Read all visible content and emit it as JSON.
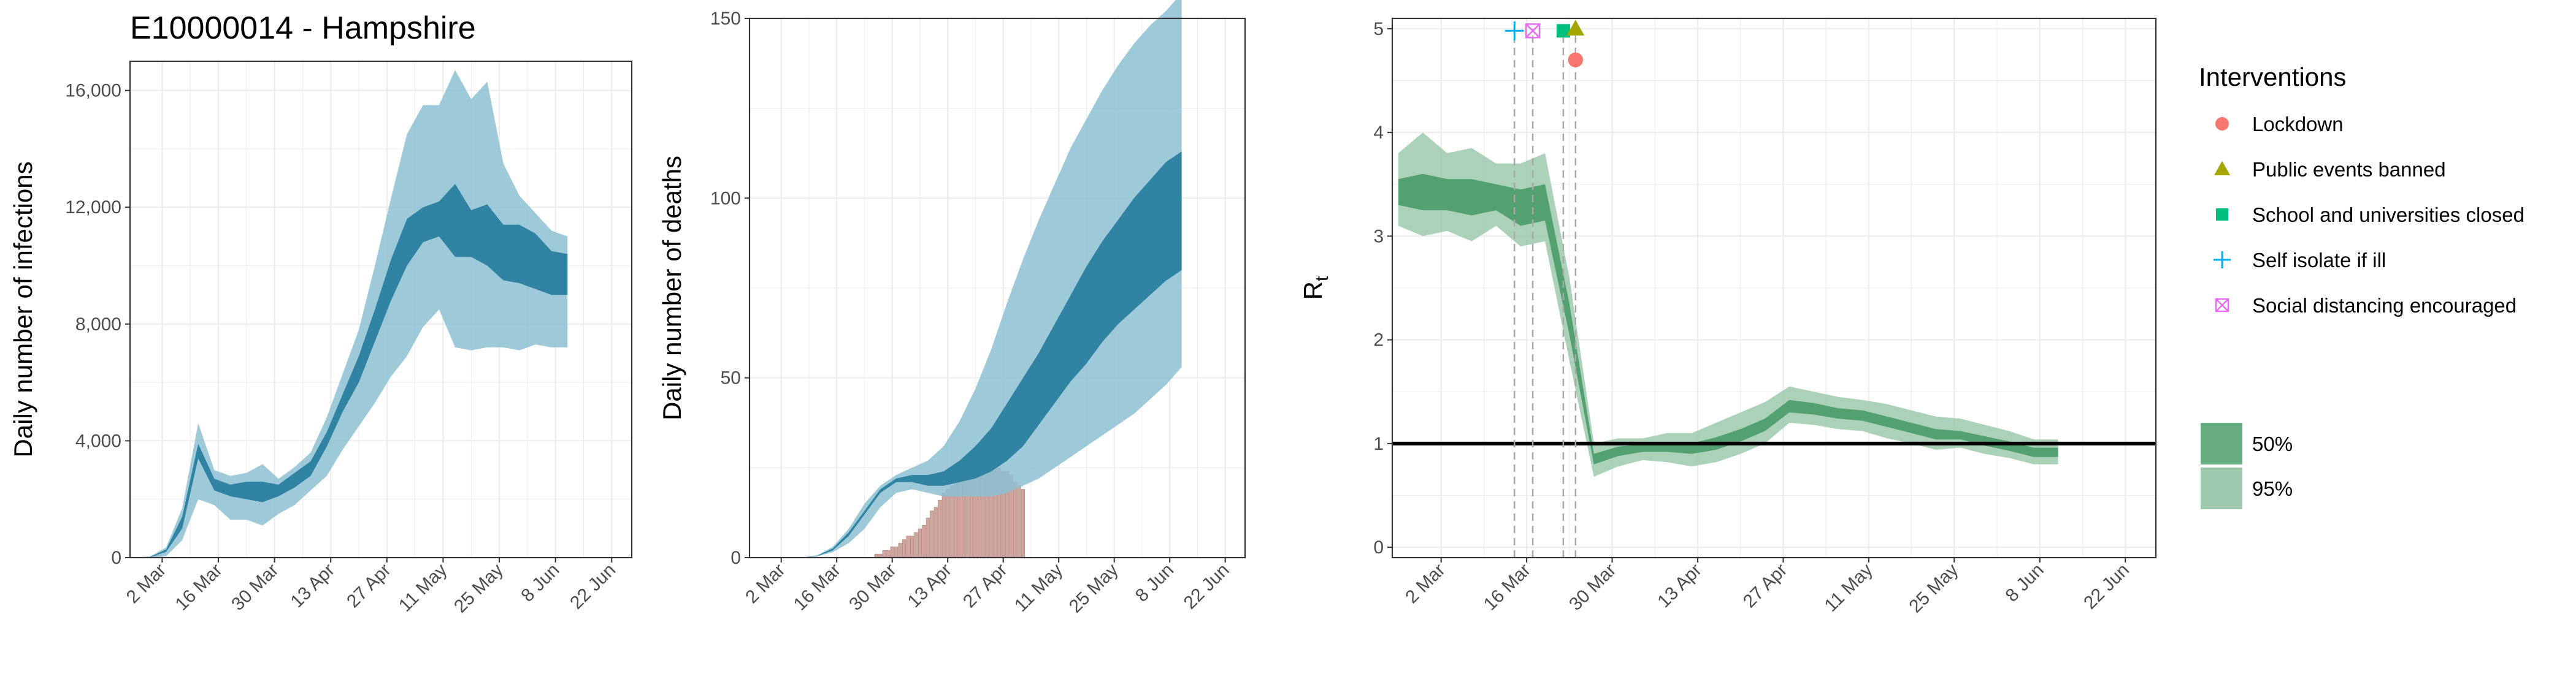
{
  "title": "E10000014 - Hampshire",
  "colors": {
    "blue_dark": "#2B7FA0",
    "blue_light": "#8CBFD2",
    "green_dark": "#4E9D6B",
    "green_light": "#9CC9AD",
    "bar": "#D0A59E",
    "grid": "#EBEBEB",
    "lockdown": "#F8766D",
    "public_events": "#A3A500",
    "schools": "#00BF7D",
    "self_isolate": "#00B0F6",
    "social_distancing": "#E76BF3"
  },
  "chart_data": [
    {
      "id": "infections",
      "type": "area",
      "title": "E10000014 - Hampshire",
      "ylabel": "Daily number of infections",
      "ylim": [
        0,
        17000
      ],
      "yticks": [
        0,
        4000,
        8000,
        12000,
        16000
      ],
      "ytick_labels": [
        "0",
        "4,000",
        "8,000",
        "12,000",
        "16,000"
      ],
      "xticks": [
        1,
        15,
        29,
        43,
        57,
        71,
        85,
        99,
        113
      ],
      "xtick_labels": [
        "2 Mar",
        "16 Mar",
        "30 Mar",
        "13 Apr",
        "27 Apr",
        "11 May",
        "25 May",
        "8 Jun",
        "22 Jun"
      ],
      "x_start": -6,
      "x_step": 4,
      "series": [
        {
          "name": "95%",
          "lower": [
            0,
            0,
            50,
            600,
            2000,
            1800,
            1300,
            1300,
            1100,
            1500,
            1800,
            2300,
            2800,
            3700,
            4500,
            5300,
            6200,
            6900,
            7900,
            8500,
            7200,
            7100,
            7200,
            7200,
            7100,
            7300,
            7200,
            7200
          ],
          "upper": [
            0,
            40,
            350,
            1700,
            4600,
            3000,
            2800,
            2900,
            3200,
            2700,
            3100,
            3600,
            4800,
            6300,
            7800,
            10000,
            12300,
            14500,
            15500,
            15500,
            16700,
            15700,
            16300,
            13500,
            12400,
            11800,
            11200,
            11000
          ]
        },
        {
          "name": "50%",
          "lower": [
            0,
            10,
            200,
            1000,
            3400,
            2300,
            2100,
            2000,
            1900,
            2100,
            2400,
            2800,
            3800,
            5000,
            6000,
            7400,
            8800,
            10000,
            10800,
            11000,
            10300,
            10300,
            10000,
            9500,
            9400,
            9200,
            9000,
            9000
          ],
          "upper": [
            0,
            20,
            280,
            1400,
            3900,
            2700,
            2500,
            2600,
            2600,
            2500,
            2900,
            3300,
            4300,
            5600,
            6900,
            8500,
            10200,
            11600,
            12000,
            12200,
            12800,
            11900,
            12100,
            11400,
            11400,
            11100,
            10500,
            10400
          ]
        }
      ]
    },
    {
      "id": "deaths",
      "type": "area",
      "ylabel": "Daily number of deaths",
      "ylim": [
        0,
        150
      ],
      "yticks": [
        0,
        50,
        100,
        150
      ],
      "ytick_labels": [
        "0",
        "50",
        "100",
        "150"
      ],
      "xticks": [
        1,
        15,
        29,
        43,
        57,
        71,
        85,
        99,
        113
      ],
      "xtick_labels": [
        "2 Mar",
        "16 Mar",
        "30 Mar",
        "13 Apr",
        "27 Apr",
        "11 May",
        "25 May",
        "8 Jun",
        "22 Jun"
      ],
      "x_start": -6,
      "x_step": 4,
      "series": [
        {
          "name": "95%",
          "lower": [
            0,
            0,
            0,
            0,
            0.3,
            1.5,
            4,
            8,
            14,
            18,
            19,
            18,
            17,
            17,
            17,
            17,
            18,
            20,
            22,
            25,
            28,
            31,
            34,
            37,
            40,
            44,
            48,
            53
          ],
          "upper": [
            0,
            0,
            0,
            0,
            0.6,
            3,
            8,
            15,
            20,
            23,
            25,
            27,
            31,
            38,
            47,
            58,
            71,
            83,
            94,
            104,
            114,
            122,
            130,
            137,
            143,
            148,
            152,
            157
          ]
        },
        {
          "name": "50%",
          "lower": [
            0,
            0,
            0,
            0,
            0.4,
            2,
            6,
            12,
            18,
            21,
            21,
            20,
            20,
            21,
            22,
            24,
            27,
            31,
            37,
            43,
            49,
            54,
            60,
            65,
            69,
            73,
            77,
            80
          ],
          "upper": [
            0,
            0,
            0,
            0,
            0.5,
            2.5,
            7,
            13,
            19,
            22,
            23,
            23,
            24,
            27,
            31,
            36,
            43,
            50,
            57,
            65,
            73,
            81,
            88,
            94,
            100,
            105,
            110,
            113
          ]
        }
      ],
      "bars": {
        "x": [
          25,
          26,
          27,
          28,
          29,
          30,
          31,
          32,
          33,
          34,
          35,
          36,
          37,
          38,
          39,
          40,
          41,
          42,
          43,
          44,
          45,
          46,
          47,
          48,
          49,
          50,
          51,
          52,
          53,
          54,
          55,
          56,
          57,
          58,
          59,
          60,
          61,
          62
        ],
        "values": [
          1,
          1,
          2,
          2,
          3,
          3,
          4,
          5,
          6,
          6,
          7,
          8,
          9,
          11,
          13,
          14,
          16,
          18,
          19,
          20,
          21,
          22,
          23,
          23,
          24,
          24,
          25,
          26,
          25,
          25,
          26,
          25,
          24,
          24,
          23,
          21,
          20,
          19
        ]
      }
    },
    {
      "id": "rt",
      "type": "area",
      "ylabel": "R",
      "ylabel_sub": "t",
      "ylim": [
        -0.1,
        5.1
      ],
      "yticks": [
        0,
        1,
        2,
        3,
        4,
        5
      ],
      "ytick_labels": [
        "0",
        "1",
        "2",
        "3",
        "4",
        "5"
      ],
      "xticks": [
        1,
        15,
        29,
        43,
        57,
        71,
        85,
        99,
        113
      ],
      "xtick_labels": [
        "2 Mar",
        "16 Mar",
        "30 Mar",
        "13 Apr",
        "27 Apr",
        "11 May",
        "25 May",
        "8 Jun",
        "22 Jun"
      ],
      "x_start": -6,
      "x_step": 4,
      "reference_line": 1,
      "series": [
        {
          "name": "95%",
          "lower": [
            3.1,
            3.0,
            3.05,
            2.95,
            3.1,
            2.9,
            2.95,
            1.8,
            0.68,
            0.78,
            0.84,
            0.82,
            0.78,
            0.82,
            0.9,
            1.0,
            1.2,
            1.18,
            1.14,
            1.12,
            1.05,
            1.0,
            0.94,
            0.96,
            0.9,
            0.86,
            0.8,
            0.8
          ],
          "upper": [
            3.8,
            4.0,
            3.8,
            3.85,
            3.7,
            3.7,
            3.8,
            2.6,
            1.0,
            1.05,
            1.05,
            1.1,
            1.1,
            1.2,
            1.3,
            1.4,
            1.55,
            1.5,
            1.45,
            1.42,
            1.38,
            1.32,
            1.26,
            1.24,
            1.18,
            1.12,
            1.04,
            1.04
          ]
        },
        {
          "name": "50%",
          "lower": [
            3.3,
            3.25,
            3.25,
            3.2,
            3.25,
            3.1,
            3.15,
            2.05,
            0.8,
            0.88,
            0.92,
            0.92,
            0.9,
            0.94,
            1.02,
            1.12,
            1.3,
            1.28,
            1.24,
            1.22,
            1.16,
            1.1,
            1.04,
            1.04,
            0.98,
            0.93,
            0.87,
            0.87
          ],
          "upper": [
            3.55,
            3.6,
            3.55,
            3.55,
            3.5,
            3.45,
            3.5,
            2.35,
            0.9,
            0.97,
            0.99,
            1.0,
            1.0,
            1.06,
            1.14,
            1.24,
            1.42,
            1.39,
            1.34,
            1.32,
            1.26,
            1.2,
            1.14,
            1.12,
            1.07,
            1.02,
            0.96,
            0.96
          ]
        }
      ],
      "interventions": [
        {
          "name": "Self isolate if ill",
          "x": 13,
          "y": 4.98,
          "shape": "plus"
        },
        {
          "name": "Social distancing encouraged",
          "x": 16,
          "y": 4.98,
          "shape": "boxcross"
        },
        {
          "name": "School and universities closed",
          "x": 21,
          "y": 4.98,
          "shape": "square"
        },
        {
          "name": "Public events banned",
          "x": 23,
          "y": 5.0,
          "shape": "triangle"
        },
        {
          "name": "Lockdown",
          "x": 23,
          "y": 4.7,
          "shape": "circle"
        }
      ]
    }
  ],
  "legend": {
    "title": "Interventions",
    "items": [
      {
        "label": "Lockdown",
        "shape": "circle",
        "color": "#F8766D"
      },
      {
        "label": "Public events banned",
        "shape": "triangle",
        "color": "#A3A500"
      },
      {
        "label": "School and universities closed",
        "shape": "square",
        "color": "#00BF7D"
      },
      {
        "label": "Self isolate if ill",
        "shape": "plus",
        "color": "#00B0F6"
      },
      {
        "label": "Social distancing encouraged",
        "shape": "boxcross",
        "color": "#E76BF3"
      }
    ],
    "intervals": [
      {
        "label": "50%",
        "color": "#4E9D6B",
        "opacity": 0.85
      },
      {
        "label": "95%",
        "color": "#4E9D6B",
        "opacity": 0.55
      }
    ]
  }
}
